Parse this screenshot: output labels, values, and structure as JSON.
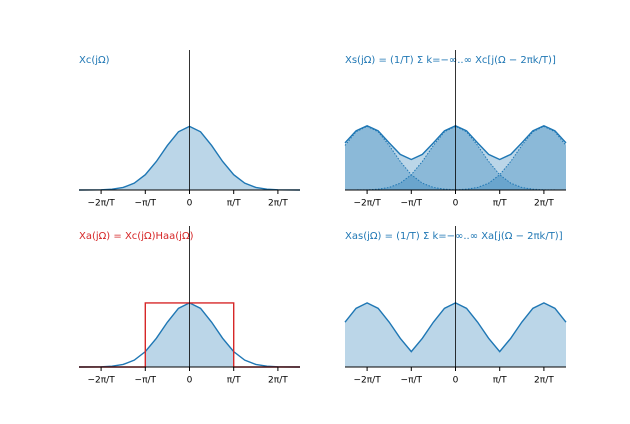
{
  "chart_data": [
    {
      "type": "line",
      "title": "Xc(jΩ)",
      "title_color": "#1f77b4",
      "x": [
        -2.5,
        -2.25,
        -2,
        -1.75,
        -1.5,
        -1.25,
        -1,
        -0.75,
        -0.5,
        -0.25,
        0,
        0.25,
        0.5,
        0.75,
        1,
        1.25,
        1.5,
        1.75,
        2,
        2.25,
        2.5
      ],
      "series": [
        {
          "color": "#1f77b4",
          "fill": true,
          "linestyle": "solid",
          "values": [
            0,
            0.001,
            0.003,
            0.013,
            0.04,
            0.107,
            0.24,
            0.448,
            0.7,
            0.915,
            1,
            0.915,
            0.7,
            0.448,
            0.24,
            0.107,
            0.04,
            0.013,
            0.003,
            0.001,
            0
          ]
        }
      ],
      "xlim": [
        -2.5,
        2.5
      ],
      "ylim": [
        0,
        2.2
      ],
      "xticks": [
        {
          "value": -2,
          "label": "−2π/T"
        },
        {
          "value": -1,
          "label": "−π/T"
        },
        0,
        {
          "value": 1,
          "label": "π/T"
        },
        {
          "value": 2,
          "label": "2π/T"
        }
      ]
    },
    {
      "type": "line",
      "title": "Xs(jΩ) = (1/T) Σ k=−∞..∞ Xc[j(Ω − 2πk/T)]",
      "title_color": "#1f77b4",
      "x": [
        -2.5,
        -2.25,
        -2,
        -1.75,
        -1.5,
        -1.25,
        -1,
        -0.75,
        -0.5,
        -0.25,
        0,
        0.25,
        0.5,
        0.75,
        1,
        1.25,
        1.5,
        1.75,
        2,
        2.25,
        2.5
      ],
      "series": [
        {
          "color": "#1f77b4",
          "fill": true,
          "linestyle": "solid",
          "values": [
            0.74,
            0.93,
            1.01,
            0.93,
            0.74,
            0.56,
            0.48,
            0.56,
            0.74,
            0.93,
            1.01,
            0.93,
            0.74,
            0.56,
            0.48,
            0.56,
            0.74,
            0.93,
            1.01,
            0.93,
            0.74
          ]
        },
        {
          "color": "#1f77b4",
          "fill": true,
          "linestyle": "dotted",
          "values": [
            0.7,
            0.915,
            1,
            0.915,
            0.7,
            0.448,
            0.24,
            0.107,
            0.04,
            0.013,
            0.003,
            0.001,
            0,
            0,
            0,
            0,
            0,
            0,
            0,
            0,
            0
          ]
        },
        {
          "color": "#1f77b4",
          "fill": true,
          "linestyle": "dotted",
          "values": [
            0,
            0.001,
            0.003,
            0.013,
            0.04,
            0.107,
            0.24,
            0.448,
            0.7,
            0.915,
            1,
            0.915,
            0.7,
            0.448,
            0.24,
            0.107,
            0.04,
            0.013,
            0.003,
            0.001,
            0
          ]
        },
        {
          "color": "#1f77b4",
          "fill": true,
          "linestyle": "dotted",
          "values": [
            0,
            0,
            0,
            0,
            0,
            0,
            0,
            0,
            0,
            0.001,
            0.003,
            0.013,
            0.04,
            0.107,
            0.24,
            0.448,
            0.7,
            0.915,
            1,
            0.915,
            0.7
          ]
        }
      ],
      "xlim": [
        -2.5,
        2.5
      ],
      "ylim": [
        0,
        2.2
      ],
      "xticks": [
        {
          "value": -2,
          "label": "−2π/T"
        },
        {
          "value": -1,
          "label": "−π/T"
        },
        0,
        {
          "value": 1,
          "label": "π/T"
        },
        {
          "value": 2,
          "label": "2π/T"
        }
      ]
    },
    {
      "type": "line",
      "title": "Xa(jΩ) = Xc(jΩ)Haa(jΩ)",
      "title_color": "#d62728",
      "x": [
        -2.5,
        -2.25,
        -2,
        -1.75,
        -1.5,
        -1.25,
        -1,
        -0.75,
        -0.5,
        -0.25,
        0,
        0.25,
        0.5,
        0.75,
        1,
        1.25,
        1.5,
        1.75,
        2,
        2.25,
        2.5
      ],
      "series": [
        {
          "color": "#1f77b4",
          "fill": true,
          "fill_clip": 1,
          "linestyle": "solid",
          "values": [
            0,
            0.001,
            0.003,
            0.013,
            0.04,
            0.107,
            0.24,
            0.448,
            0.7,
            0.915,
            1,
            0.915,
            0.7,
            0.448,
            0.24,
            0.107,
            0.04,
            0.013,
            0.003,
            0.001,
            0
          ]
        },
        {
          "color": "#d62728",
          "fill": false,
          "linestyle": "solid",
          "x": [
            -2.5,
            -1,
            -1,
            1,
            1,
            2.5
          ],
          "values": [
            0,
            0,
            1,
            1,
            0,
            0
          ]
        }
      ],
      "xlim": [
        -2.5,
        2.5
      ],
      "ylim": [
        0,
        2.2
      ],
      "xticks": [
        {
          "value": -2,
          "label": "−2π/T"
        },
        {
          "value": -1,
          "label": "−π/T"
        },
        0,
        {
          "value": 1,
          "label": "π/T"
        },
        {
          "value": 2,
          "label": "2π/T"
        }
      ]
    },
    {
      "type": "line",
      "title": "Xas(jΩ) = (1/T) Σ k=−∞..∞ Xa[j(Ω − 2πk/T)]",
      "title_color": "#1f77b4",
      "x": [
        -2.5,
        -2.25,
        -2,
        -1.75,
        -1.5,
        -1.25,
        -1,
        -0.75,
        -0.5,
        -0.25,
        0,
        0.25,
        0.5,
        0.75,
        1,
        1.25,
        1.5,
        1.75,
        2,
        2.25,
        2.5
      ],
      "series": [
        {
          "color": "#1f77b4",
          "fill": true,
          "linestyle": "solid",
          "values": [
            0.7,
            0.915,
            1,
            0.915,
            0.7,
            0.448,
            0.24,
            0.448,
            0.7,
            0.915,
            1,
            0.915,
            0.7,
            0.448,
            0.24,
            0.448,
            0.7,
            0.915,
            1,
            0.915,
            0.7
          ]
        }
      ],
      "xlim": [
        -2.5,
        2.5
      ],
      "ylim": [
        0,
        2.2
      ],
      "xticks": [
        {
          "value": -2,
          "label": "−2π/T"
        },
        {
          "value": -1,
          "label": "−π/T"
        },
        0,
        {
          "value": 1,
          "label": "π/T"
        },
        {
          "value": 2,
          "label": "2π/T"
        }
      ]
    }
  ]
}
